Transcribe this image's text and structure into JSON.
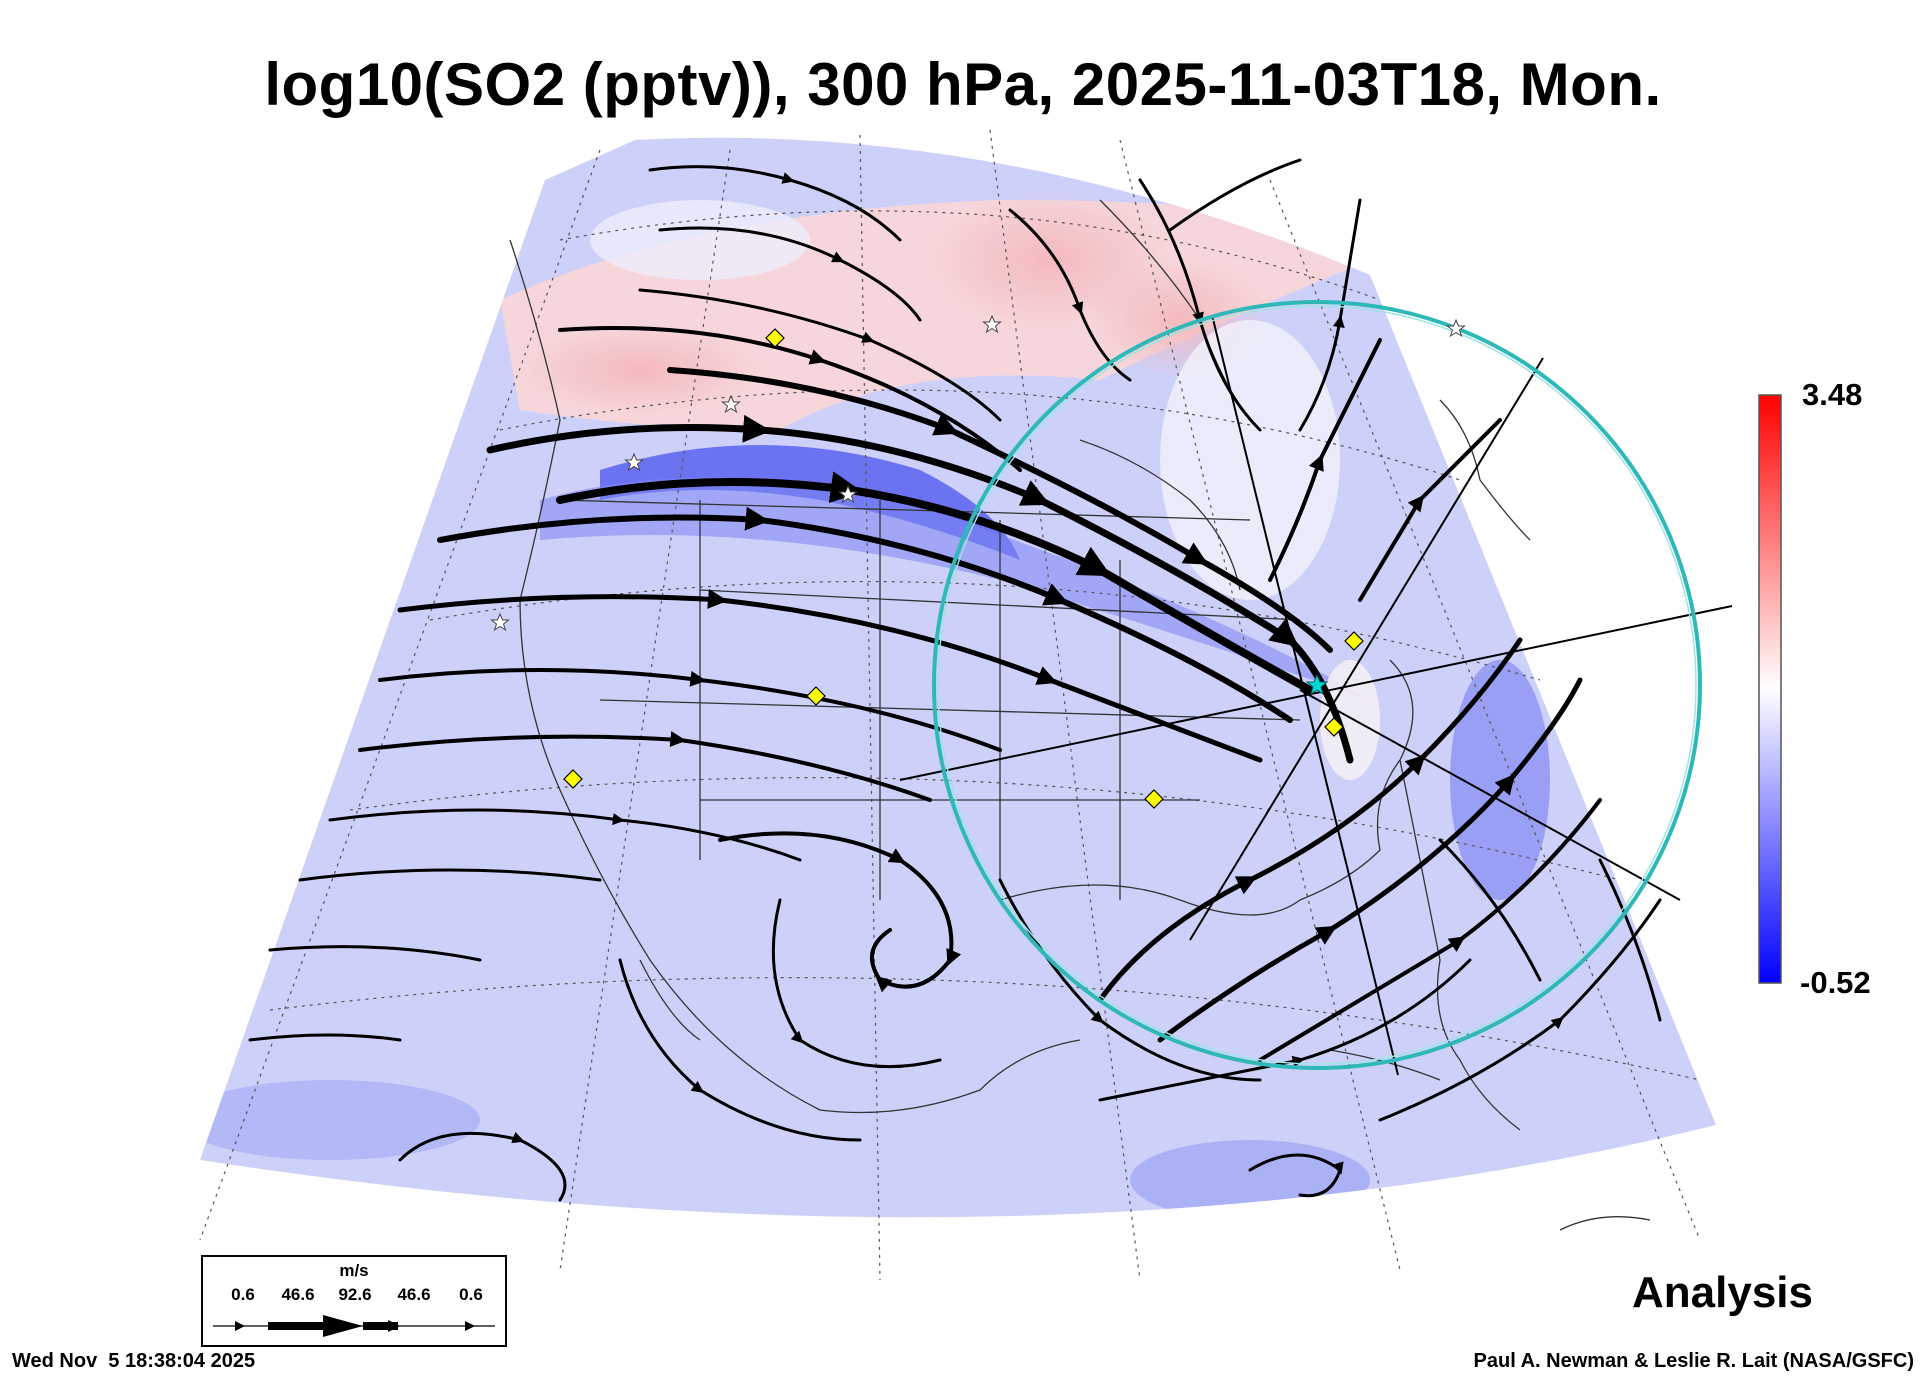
{
  "title": "log10(SO2 (pptv)), 300 hPa, 2025-11-03T18, Mon.",
  "colorbar": {
    "max_label": "3.48",
    "min_label": "-0.52",
    "colors": {
      "high": "#ff0000",
      "mid": "#ffffff",
      "low": "#0000ff"
    }
  },
  "legend": {
    "unit": "m/s",
    "ticks": [
      "0.6",
      "46.6",
      "92.6",
      "46.6",
      "0.6"
    ]
  },
  "product": "Analysis",
  "timestamp": "Wed Nov  5 18:38:04 2025",
  "credit": "Paul A. Newman & Leslie R. Lait (NASA/GSFC)",
  "map": {
    "field_colors": {
      "background": "#cfd3fb",
      "red_band": "#f7cfd3",
      "deep_blue": "#4e57ea",
      "circle": "#33c4c4"
    },
    "markers": {
      "diamond": "#ffff00",
      "star": "#ffffff",
      "center": "#00d8d8"
    }
  }
}
